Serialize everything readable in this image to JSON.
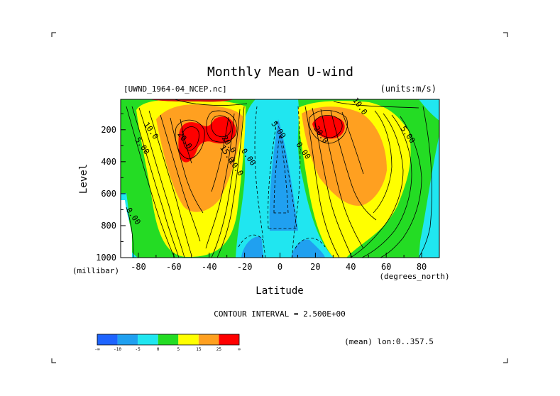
{
  "chart_data": {
    "type": "heatmap",
    "title": "Monthly Mean U-wind",
    "dataset_label": "[UWND_1964-04_NCEP.nc]",
    "units_label": "(units:m/s)",
    "xlabel": "Latitude",
    "x_unit_label": "(degrees_north)",
    "ylabel": "Level",
    "y_unit_label": "(millibar)",
    "xlim": [
      -90,
      90
    ],
    "ylim": [
      1000,
      10
    ],
    "x_ticks": [
      -80,
      -60,
      -40,
      -20,
      0,
      20,
      40,
      60,
      80
    ],
    "y_ticks": [
      200,
      400,
      600,
      800,
      1000
    ],
    "contour_interval_text": "CONTOUR INTERVAL = 2.500E+00",
    "mean_text": "(mean) lon:0..357.5",
    "colorbar": {
      "colors": [
        "#1e64ff",
        "#20a0f0",
        "#20e6f0",
        "#24dc24",
        "#ffff00",
        "#ffa020",
        "#ff0000"
      ],
      "labels": [
        "-∞",
        "-10",
        "-5",
        "0",
        "5",
        "15",
        "25",
        "∞"
      ]
    },
    "contour_labels": [
      {
        "text": "10.0",
        "lat": -74,
        "p": 215
      },
      {
        "text": "5.00",
        "lat": -79,
        "p": 310
      },
      {
        "text": "20.0",
        "lat": -55,
        "p": 275
      },
      {
        "text": "20.0",
        "lat": -30,
        "p": 300
      },
      {
        "text": "15.0",
        "lat": -31,
        "p": 360
      },
      {
        "text": "10.0",
        "lat": -26,
        "p": 445
      },
      {
        "text": "0.00",
        "lat": -19,
        "p": 380
      },
      {
        "text": "5.00",
        "lat": -2,
        "p": 210
      },
      {
        "text": "0.00",
        "lat": 12,
        "p": 340
      },
      {
        "text": "10.0",
        "lat": 44,
        "p": 62
      },
      {
        "text": "20.0",
        "lat": 22,
        "p": 240
      },
      {
        "text": "5.00",
        "lat": 71,
        "p": 240
      },
      {
        "text": "0.00",
        "lat": -84,
        "p": 750
      }
    ]
  }
}
